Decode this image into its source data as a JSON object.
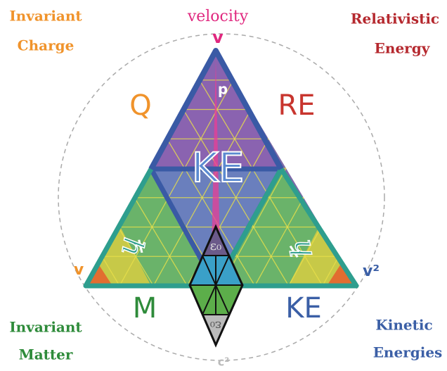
{
  "corners": {
    "top_left": [
      "Invariant",
      "Charge"
    ],
    "top_right": [
      "Relativistic",
      "Energy"
    ],
    "bottom_left": [
      "Invariant",
      "Matter"
    ],
    "bottom_right": [
      "Kinetic",
      "Energies"
    ]
  },
  "top_label": "velocity",
  "vertices": {
    "top": "v",
    "left": "v",
    "right": "v²",
    "bottom": "c²"
  },
  "regions": {
    "q": "Q",
    "re": "RE",
    "m": "M",
    "ke_bottom": "KE",
    "ke_center": "KE",
    "p": "p"
  },
  "diamond": {
    "top": "ε₀",
    "bottom": "ε₀"
  },
  "side_symbols": [
    "ℏ",
    "ℏ"
  ]
}
